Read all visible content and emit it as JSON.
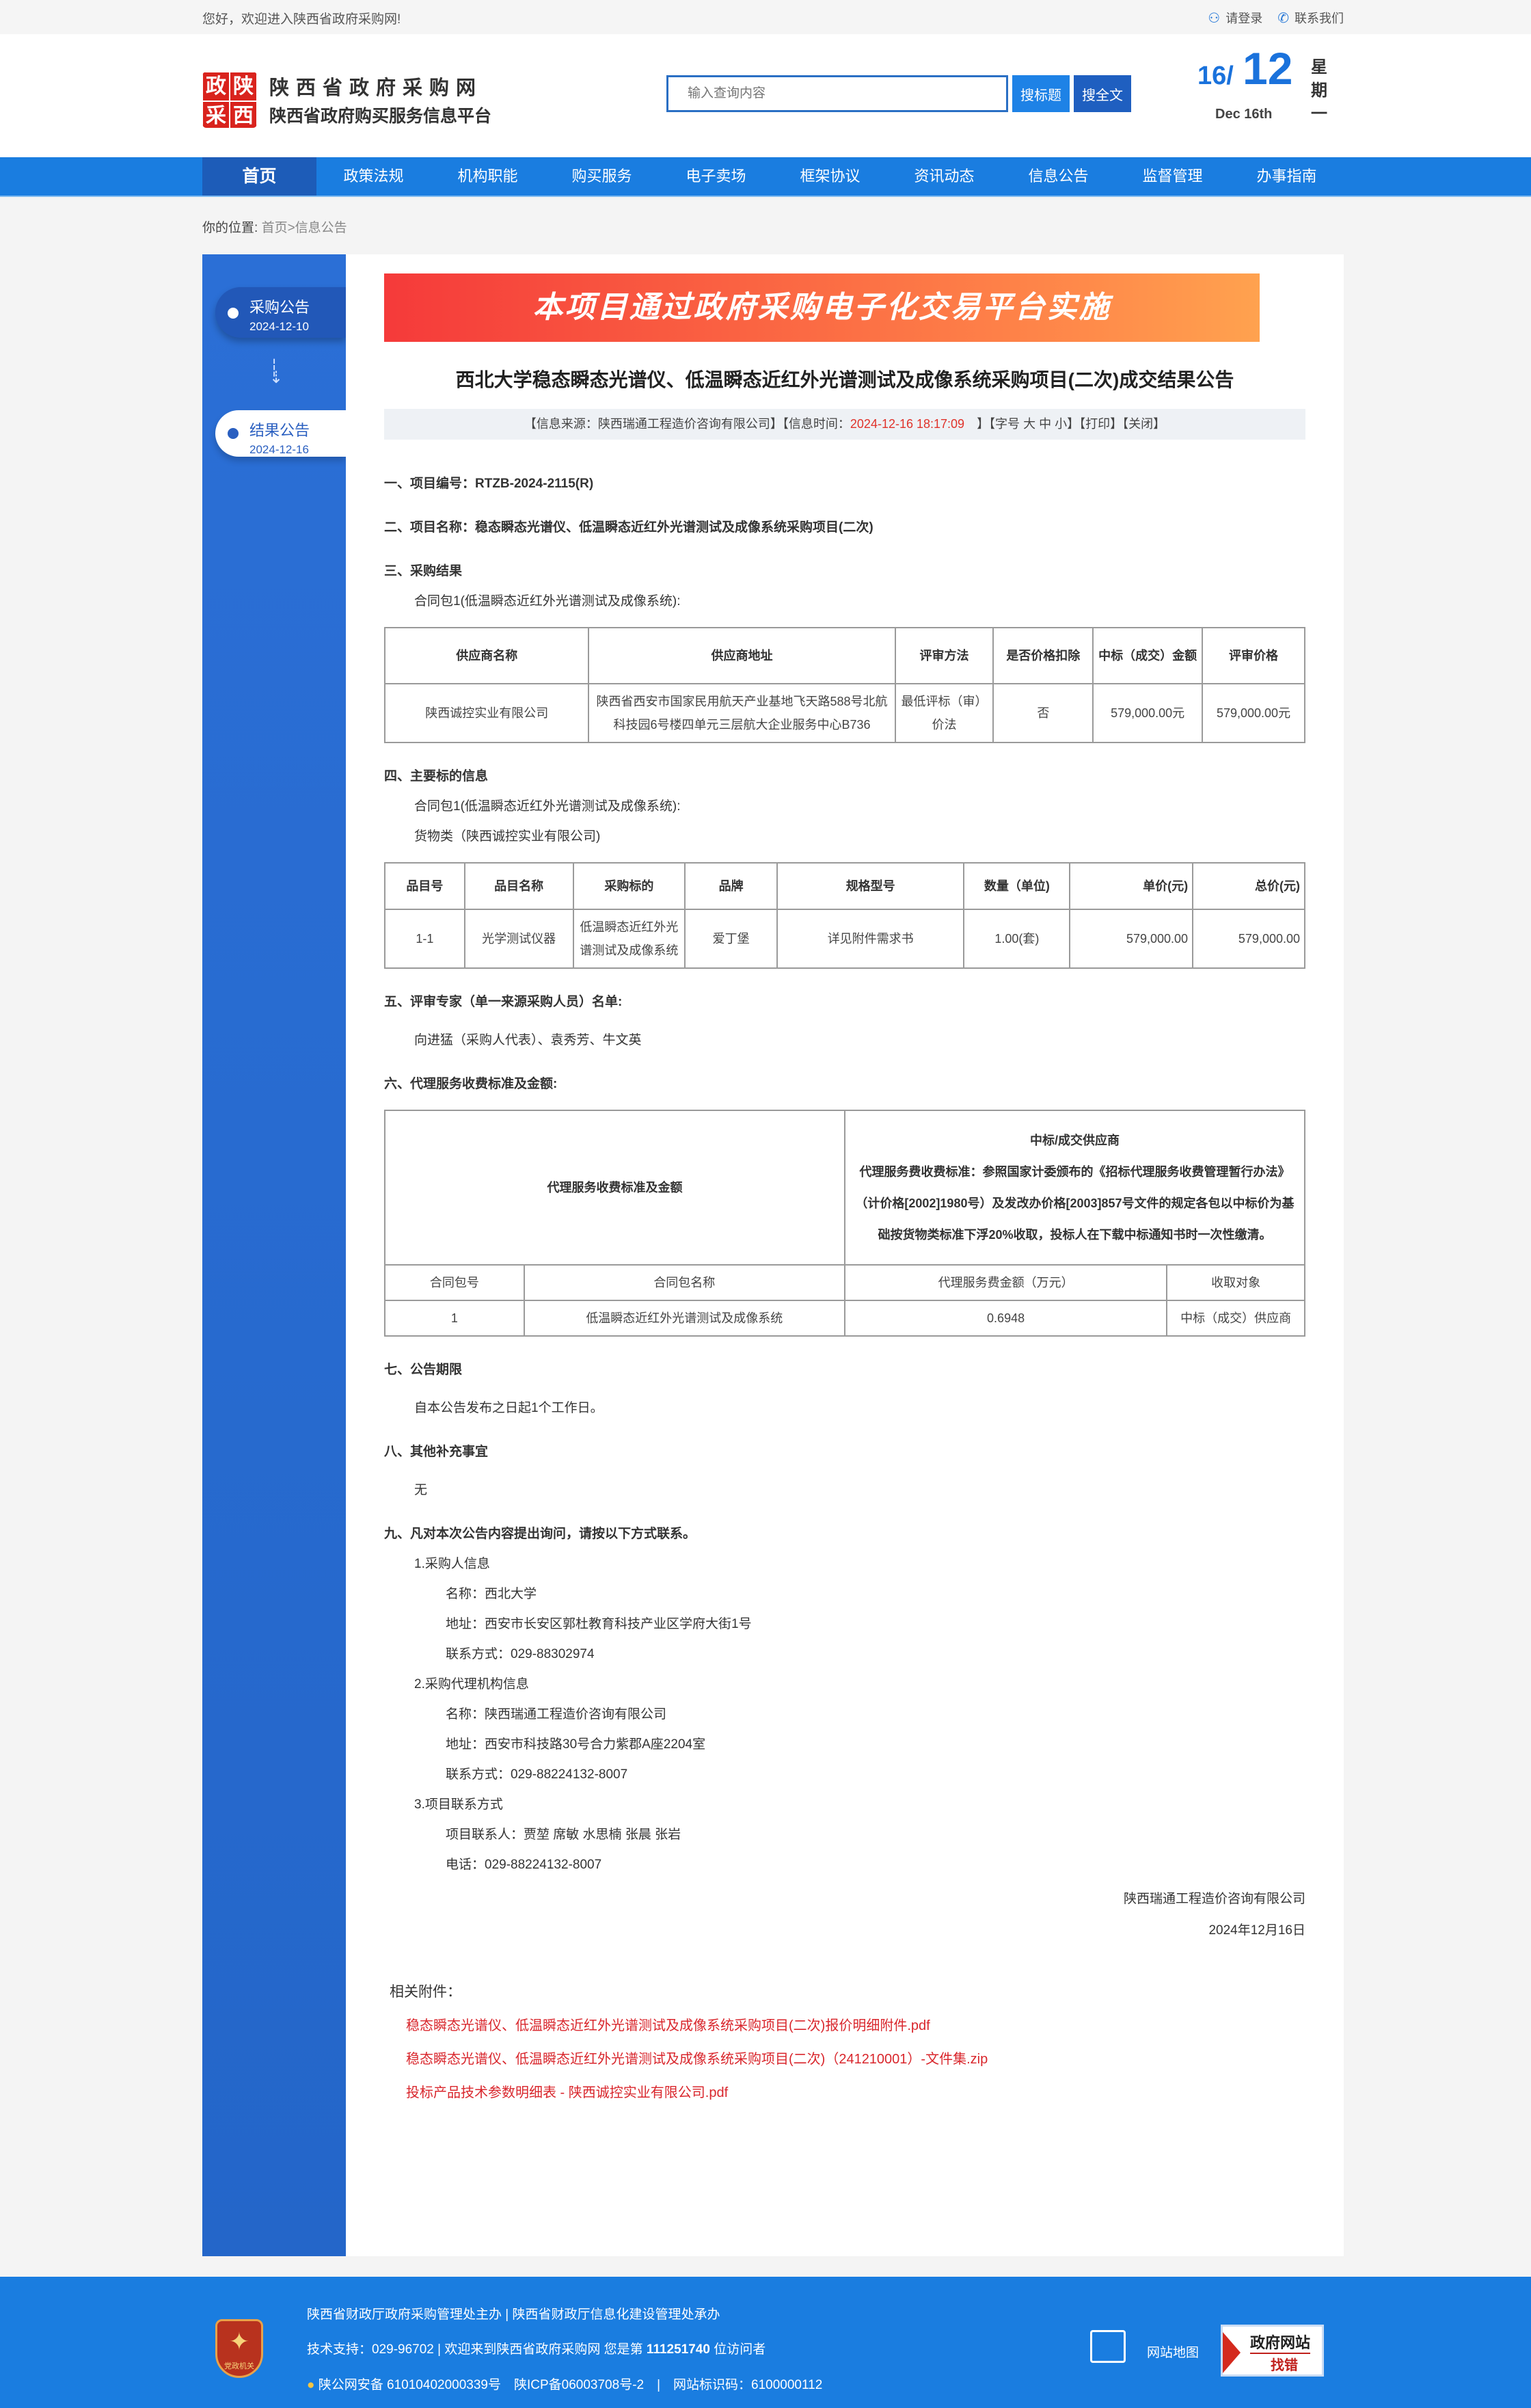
{
  "topbar": {
    "welcome": "您好，欢迎进入陕西省政府采购网!",
    "login": "请登录",
    "contact": "联系我们",
    "login_icon": "user-icon",
    "contact_icon": "phone-icon"
  },
  "header": {
    "logo_chars": [
      "政",
      "陕",
      "采",
      "西"
    ],
    "site_name": "陕西省政府采购网",
    "site_sub": "陕西省政府购买服务信息平台",
    "search_placeholder": "输入查询内容",
    "search_title_btn": "搜标题",
    "search_full_btn": "搜全文",
    "date_day": "16/",
    "date_month": "12",
    "date_en": "Dec 16th",
    "weekday": "星期一"
  },
  "nav": [
    "首页",
    "政策法规",
    "机构职能",
    "购买服务",
    "电子卖场",
    "框架协议",
    "资讯动态",
    "信息公告",
    "监督管理",
    "办事指南"
  ],
  "breadcrumb": {
    "label": "你的位置:",
    "home": "首页",
    "current": ">信息公告"
  },
  "sidebar": {
    "items": [
      {
        "label": "采购公告",
        "date": "2024-12-10"
      },
      {
        "label": "结果公告",
        "date": "2024-12-16"
      }
    ]
  },
  "article": {
    "banner": "本项目通过政府采购电子化交易平台实施",
    "title": "西北大学稳态瞬态光谱仪、低温瞬态近红外光谱测试及成像系统采购项目(二次)成交结果公告",
    "info": {
      "source": "【信息来源：陕西瑞通工程造价咨询有限公司】【信息时间：",
      "time": "2024-12-16 18:17:09",
      "rest": "】【字号 大 中 小】【打印】【关闭】"
    },
    "s1": "一、项目编号：RTZB-2024-2115(R)",
    "s2": "二、项目名称：稳态瞬态光谱仪、低温瞬态近红外光谱测试及成像系统采购项目(二次)",
    "s3": "三、采购结果",
    "s3_pkg": "合同包1(低温瞬态近红外光谱测试及成像系统):",
    "table1": {
      "headers": [
        "供应商名称",
        "供应商地址",
        "评审方法",
        "是否价格扣除",
        "中标（成交）金额",
        "评审价格"
      ],
      "rows": [
        [
          "陕西诚控实业有限公司",
          "陕西省西安市国家民用航天产业基地飞天路588号北航科技园6号楼四单元三层航大企业服务中心B736",
          "最低评标（审）价法",
          "否",
          "579,000.00元",
          "579,000.00元"
        ]
      ]
    },
    "s4": "四、主要标的信息",
    "s4_pkg": "合同包1(低温瞬态近红外光谱测试及成像系统):",
    "s4_cat": "货物类（陕西诚控实业有限公司)",
    "table2": {
      "headers": [
        "品目号",
        "品目名称",
        "采购标的",
        "品牌",
        "规格型号",
        "数量（单位)",
        "单价(元)",
        "总价(元)"
      ],
      "rows": [
        [
          "1-1",
          "光学测试仪器",
          "低温瞬态近红外光谱测试及成像系统",
          "爱丁堡",
          "详见附件需求书",
          "1.00(套)",
          "579,000.00",
          "579,000.00"
        ]
      ]
    },
    "s5": "五、评审专家（单一来源采购人员）名单:",
    "s5_names": "向进猛（采购人代表）、袁秀芳、牛文英",
    "s6": "六、代理服务收费标准及金额:",
    "table3": {
      "left_header": "代理服务收费标准及金额",
      "right_title": "中标/成交供应商",
      "right_desc": "代理服务费收费标准：参照国家计委颁布的《招标代理服务收费管理暂行办法》（计价格[2002]1980号）及发改办价格[2003]857号文件的规定各包以中标价为基础按货物类标准下浮20%收取，投标人在下载中标通知书时一次性缴清。",
      "headers": [
        "合同包号",
        "合同包名称",
        "代理服务费金额（万元）",
        "收取对象"
      ],
      "rows": [
        [
          "1",
          "低温瞬态近红外光谱测试及成像系统",
          "0.6948",
          "中标（成交）供应商"
        ]
      ]
    },
    "s7": "七、公告期限",
    "s7_text": "自本公告发布之日起1个工作日。",
    "s8": "八、其他补充事宜",
    "s8_text": "无",
    "s9": "九、凡对本次公告内容提出询问，请按以下方式联系。",
    "contacts": [
      {
        "title": "1.采购人信息",
        "lines": [
          "名称：西北大学",
          "地址：西安市长安区郭杜教育科技产业区学府大街1号",
          "联系方式：029-88302974"
        ]
      },
      {
        "title": "2.采购代理机构信息",
        "lines": [
          "名称：陕西瑞通工程造价咨询有限公司",
          "地址：西安市科技路30号合力紫郡A座2204室",
          "联系方式：029-88224132-8007"
        ]
      },
      {
        "title": "3.项目联系方式",
        "lines": [
          "项目联系人：贾堃 席敏 水思楠 张晨 张岩",
          "电话：029-88224132-8007"
        ]
      }
    ],
    "signature": "陕西瑞通工程造价咨询有限公司",
    "sign_date": "2024年12月16日",
    "attachments_label": "相关附件：",
    "attachments": [
      "稳态瞬态光谱仪、低温瞬态近红外光谱测试及成像系统采购项目(二次)报价明细附件.pdf",
      "稳态瞬态光谱仪、低温瞬态近红外光谱测试及成像系统采购项目(二次)（241210001）-文件集.zip",
      "投标产品技术参数明细表 - 陕西诚控实业有限公司.pdf"
    ]
  },
  "footer": {
    "line1": "陕西省财政厅政府采购管理处主办 | 陕西省财政厅信息化建设管理处承办",
    "line2_pre": "技术支持：029-96702 | 欢迎来到陕西省政府采购网 您是第",
    "visitor_count": "111251740",
    "line2_post": "位访问者",
    "line3": "陕公网安备 61010402000339号　陕ICP备06003708号-2　|　网站标识码：6100000112",
    "emblem_text": "党政机关",
    "sitemap": "网站地图",
    "zc_top": "政府网站",
    "zc_bottom": "找错"
  },
  "colors": {
    "nav_blue": "#1a7de0",
    "nav_active": "#1d5cb8",
    "link_red": "#d9262c",
    "time_red": "#e0322a"
  }
}
